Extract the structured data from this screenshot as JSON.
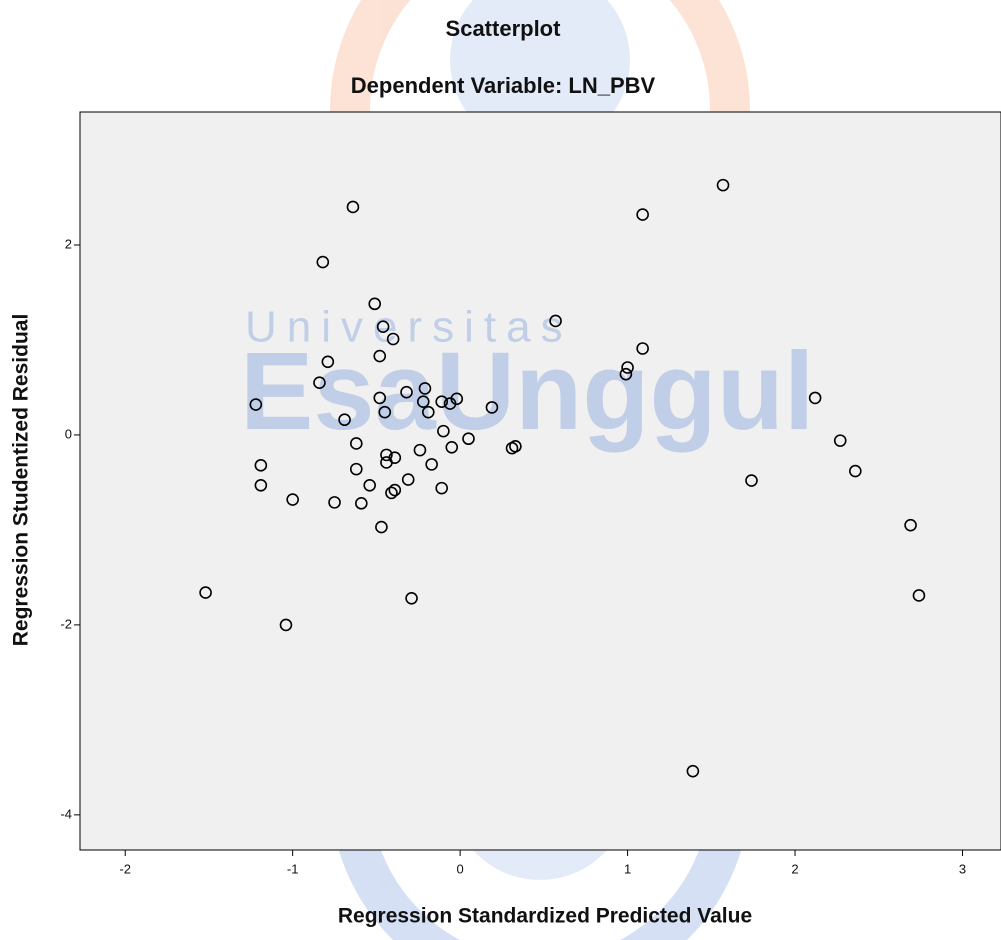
{
  "chart_data": {
    "type": "scatter",
    "title": "Scatterplot",
    "subtitle": "Dependent Variable: LN_PBV",
    "x_label": "Regression Standardized Predicted Value",
    "y_label": "Regression Studentized Residual",
    "xlim": [
      -2.27,
      3.23
    ],
    "ylim": [
      -4.37,
      3.4
    ],
    "xticks": [
      -2,
      -1,
      0,
      1,
      2,
      3
    ],
    "yticks": [
      -4,
      -2,
      0,
      2
    ],
    "background": "#f0f0f0",
    "marker_color": "#000000",
    "x": [
      -1.52,
      -1.22,
      -1.19,
      -1.19,
      -1.04,
      -1.0,
      -0.84,
      -0.82,
      -0.79,
      -0.75,
      -0.69,
      -0.64,
      -0.62,
      -0.62,
      -0.59,
      -0.54,
      -0.51,
      -0.48,
      -0.48,
      -0.47,
      -0.46,
      -0.45,
      -0.44,
      -0.44,
      -0.41,
      -0.4,
      -0.39,
      -0.39,
      -0.32,
      -0.31,
      -0.29,
      -0.24,
      -0.22,
      -0.21,
      -0.19,
      -0.17,
      -0.11,
      -0.11,
      -0.1,
      -0.06,
      -0.05,
      -0.02,
      0.05,
      0.19,
      0.31,
      0.33,
      0.57,
      0.99,
      1.0,
      1.09,
      1.09,
      1.39,
      1.57,
      1.74,
      2.12,
      2.27,
      2.36,
      2.69,
      2.74
    ],
    "values": [
      -1.66,
      0.32,
      -0.32,
      -0.53,
      -2.0,
      -0.68,
      0.55,
      1.82,
      0.77,
      -0.71,
      0.16,
      2.4,
      -0.09,
      -0.36,
      -0.72,
      -0.53,
      1.38,
      0.83,
      0.39,
      -0.97,
      1.14,
      0.24,
      -0.21,
      -0.29,
      -0.61,
      1.01,
      -0.24,
      -0.58,
      0.45,
      -0.47,
      -1.72,
      -0.16,
      0.35,
      0.49,
      0.24,
      -0.31,
      0.35,
      -0.56,
      0.04,
      0.33,
      -0.13,
      0.38,
      -0.04,
      0.29,
      -0.14,
      -0.12,
      1.2,
      0.64,
      0.71,
      2.32,
      0.91,
      -3.54,
      2.63,
      -0.48,
      0.39,
      -0.06,
      -0.38,
      -0.95,
      -1.69
    ]
  },
  "watermark": {
    "line1": "Universitas",
    "line2": "EsaUnggul"
  }
}
